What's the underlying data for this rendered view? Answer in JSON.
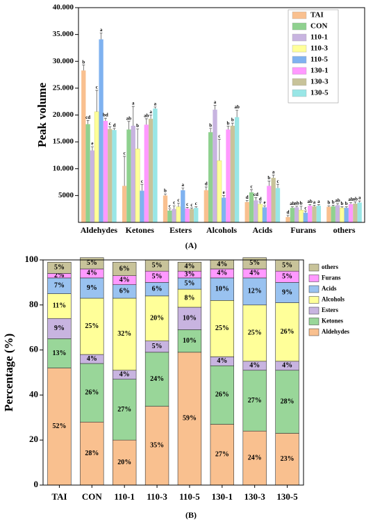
{
  "chart_data": [
    {
      "type": "bar",
      "ylabel": "Peak volume",
      "caption": "(A)",
      "categories": [
        "Aldehydes",
        "Ketones",
        "Esters",
        "Alcohols",
        "Acids",
        "Furans",
        "others"
      ],
      "ylim": [
        0,
        40000
      ],
      "yticks": [
        5000,
        {
          "value": 10000,
          "label": "10.000"
        },
        {
          "value": 15000,
          "label": "15.000"
        },
        {
          "value": 20000,
          "label": "20.000"
        },
        {
          "value": 25000,
          "label": "25.000"
        },
        {
          "value": 30000,
          "label": "30.000"
        },
        {
          "value": 35000,
          "label": "35.000"
        },
        {
          "value": 40000,
          "label": "40.000"
        }
      ],
      "legend": "upper right",
      "series": [
        {
          "name": "TAI",
          "color": "#f9c08f",
          "values": [
            28300,
            6800,
            5000,
            6000,
            3800,
            1000,
            2900
          ],
          "errors": [
            1000,
            5500,
            300,
            600,
            300,
            300,
            200
          ],
          "letters": [
            "b",
            "c",
            "b",
            "d",
            "d",
            "d",
            "b"
          ]
        },
        {
          "name": "CON",
          "color": "#8fd18f",
          "values": [
            18300,
            17300,
            2200,
            16800,
            5600,
            2700,
            3000
          ],
          "errors": [
            700,
            1500,
            300,
            700,
            500,
            200,
            200
          ],
          "letters": [
            "cd",
            "ab",
            "c",
            "b",
            "c",
            "ab",
            "b"
          ]
        },
        {
          "name": "110-1",
          "color": "#c8b4e0",
          "values": [
            13400,
            18000,
            2500,
            21000,
            4100,
            2800,
            3200
          ],
          "errors": [
            700,
            3600,
            600,
            800,
            500,
            200,
            300
          ],
          "letters": [
            "e",
            "a",
            "c",
            "a",
            "cd",
            "ab",
            "ab"
          ]
        },
        {
          "name": "110-3",
          "color": "#ffff99",
          "values": [
            20600,
            13700,
            2900,
            11500,
            3400,
            2300,
            2700
          ],
          "errors": [
            4000,
            3700,
            700,
            4000,
            400,
            700,
            200
          ],
          "letters": [
            "c",
            "b",
            "c",
            "c",
            "d",
            "b",
            "b"
          ]
        },
        {
          "name": "110-5",
          "color": "#7fb2f0",
          "values": [
            34100,
            5900,
            6000,
            4600,
            2800,
            1800,
            2700
          ],
          "errors": [
            1200,
            1200,
            400,
            400,
            300,
            300,
            200
          ],
          "letters": [
            "a",
            "c",
            "a",
            "e",
            "e",
            "c",
            "b"
          ]
        },
        {
          "name": "130-1",
          "color": "#ff99ff",
          "values": [
            18900,
            18200,
            2600,
            17300,
            6800,
            3100,
            3400
          ],
          "errors": [
            500,
            1100,
            200,
            600,
            900,
            200,
            300
          ],
          "letters": [
            "bd",
            "ab",
            "c",
            "b",
            "b",
            "ab",
            "ab"
          ]
        },
        {
          "name": "130-3",
          "color": "#c8c39a",
          "values": [
            17400,
            19300,
            2500,
            18000,
            8300,
            3000,
            3500
          ],
          "errors": [
            400,
            700,
            200,
            500,
            500,
            200,
            300
          ],
          "letters": [
            "c",
            "a",
            "c",
            "b",
            "a",
            "a",
            "ab"
          ]
        },
        {
          "name": "130-5",
          "color": "#99e6e6",
          "values": [
            17200,
            21200,
            2700,
            19600,
            6400,
            3100,
            3700
          ],
          "errors": [
            300,
            300,
            200,
            1300,
            700,
            200,
            300
          ],
          "letters": [
            "d",
            "a",
            "c",
            "ab",
            "c",
            "a",
            "a"
          ]
        }
      ]
    },
    {
      "type": "stacked_bar",
      "ylabel": "Percentage (%)",
      "caption": "(B)",
      "categories": [
        "TAI",
        "CON",
        "110-1",
        "110-3",
        "110-5",
        "130-1",
        "130-3",
        "130-5"
      ],
      "ylim": [
        0,
        100
      ],
      "yticks": [
        0,
        20,
        40,
        60,
        80,
        100
      ],
      "legend": "right",
      "series": [
        {
          "name": "Aldehydes",
          "color": "#f9c08f",
          "values": [
            52,
            28,
            20,
            35,
            59,
            27,
            24,
            23
          ],
          "value_labels": [
            "52%",
            "28%",
            "20%",
            "35%",
            "59%",
            "27%",
            "24%",
            "23%"
          ]
        },
        {
          "name": "Ketones",
          "color": "#99d699",
          "values": [
            13,
            26,
            27,
            24,
            10,
            26,
            27,
            28
          ],
          "value_labels": [
            "13%",
            "26%",
            "27%",
            "24%",
            "10%",
            "26%",
            "27%",
            "28%"
          ]
        },
        {
          "name": "Esters",
          "color": "#c8b4e0",
          "values": [
            9,
            4,
            4,
            5,
            10,
            4,
            4,
            4
          ],
          "value_labels": [
            "9%",
            "4%",
            "4%",
            "5%",
            "10%",
            "4%",
            "4%",
            "4%"
          ]
        },
        {
          "name": "Alcohols",
          "color": "#ffff99",
          "values": [
            11,
            25,
            32,
            20,
            8,
            25,
            25,
            26
          ],
          "value_labels": [
            "11%",
            "25%",
            "32%",
            "20%",
            "8%",
            "25%",
            "25%",
            "26%"
          ]
        },
        {
          "name": "Acids",
          "color": "#99c2f0",
          "values": [
            7,
            9,
            6,
            6,
            5,
            10,
            12,
            9
          ],
          "value_labels": [
            "7%",
            "9%",
            "6%",
            "6%",
            "5%",
            "10%",
            "12%",
            "9%"
          ]
        },
        {
          "name": "Furans",
          "color": "#ff99ff",
          "values": [
            2,
            4,
            4,
            5,
            3,
            4,
            4,
            5
          ],
          "value_labels": [
            "2%",
            "4%",
            "4%",
            "5%",
            "3%",
            "4%",
            "4%",
            "5%"
          ]
        },
        {
          "name": "others",
          "color": "#c8c39a",
          "values": [
            5,
            5,
            6,
            5,
            4,
            4,
            5,
            5
          ],
          "value_labels": [
            "5%",
            "5%",
            "6%",
            "5%",
            "4%",
            "4%",
            "5%",
            "5%"
          ]
        }
      ]
    }
  ]
}
